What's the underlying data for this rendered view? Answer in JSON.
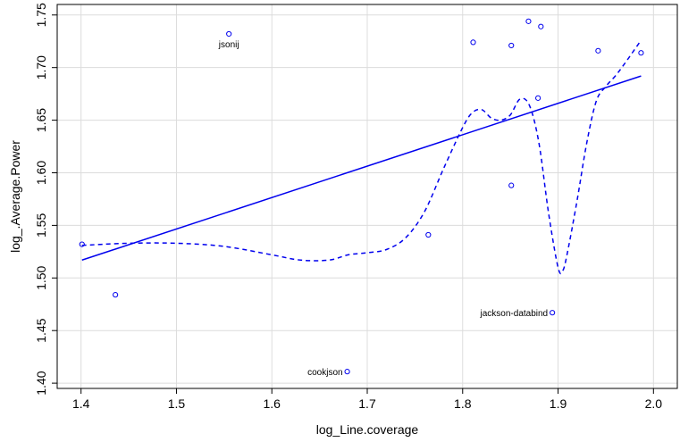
{
  "chart_data": {
    "type": "scatter",
    "title": "",
    "xlabel": "log_Line.coverage",
    "ylabel": "log_.Average.Power",
    "xlim": [
      1.375,
      2.025
    ],
    "ylim": [
      1.395,
      1.76
    ],
    "x_ticks": [
      "1.4",
      "1.5",
      "1.6",
      "1.7",
      "1.8",
      "1.9",
      "2.0"
    ],
    "x_tick_values": [
      1.4,
      1.5,
      1.6,
      1.7,
      1.8,
      1.9,
      2.0
    ],
    "y_ticks": [
      "1.40",
      "1.45",
      "1.50",
      "1.55",
      "1.60",
      "1.65",
      "1.70",
      "1.75"
    ],
    "y_tick_values": [
      1.4,
      1.45,
      1.5,
      1.55,
      1.6,
      1.65,
      1.7,
      1.75
    ],
    "grid": true,
    "color": "#0000ee",
    "points": [
      {
        "x": 1.401,
        "y": 1.532,
        "label": ""
      },
      {
        "x": 1.436,
        "y": 1.484,
        "label": ""
      },
      {
        "x": 1.555,
        "y": 1.732,
        "label": "jsonij"
      },
      {
        "x": 1.679,
        "y": 1.411,
        "label": "cookjson"
      },
      {
        "x": 1.764,
        "y": 1.541,
        "label": ""
      },
      {
        "x": 1.811,
        "y": 1.724,
        "label": ""
      },
      {
        "x": 1.851,
        "y": 1.721,
        "label": ""
      },
      {
        "x": 1.851,
        "y": 1.588,
        "label": ""
      },
      {
        "x": 1.869,
        "y": 1.744,
        "label": ""
      },
      {
        "x": 1.879,
        "y": 1.671,
        "label": ""
      },
      {
        "x": 1.882,
        "y": 1.739,
        "label": ""
      },
      {
        "x": 1.894,
        "y": 1.467,
        "label": "jackson-databind"
      },
      {
        "x": 1.942,
        "y": 1.716,
        "label": ""
      },
      {
        "x": 1.987,
        "y": 1.714,
        "label": ""
      }
    ],
    "regression_line": {
      "x": [
        1.401,
        1.987
      ],
      "y": [
        1.517,
        1.692
      ]
    },
    "smooth_line": {
      "x": [
        1.401,
        1.45,
        1.5,
        1.55,
        1.6,
        1.63,
        1.66,
        1.68,
        1.7,
        1.72,
        1.74,
        1.76,
        1.78,
        1.8,
        1.81,
        1.82,
        1.83,
        1.84,
        1.85,
        1.86,
        1.87,
        1.88,
        1.89,
        1.9,
        1.905,
        1.91,
        1.92,
        1.93,
        1.94,
        1.95,
        1.96,
        1.97,
        1.987
      ],
      "y": [
        1.531,
        1.533,
        1.533,
        1.53,
        1.522,
        1.517,
        1.517,
        1.522,
        1.524,
        1.527,
        1.538,
        1.563,
        1.604,
        1.643,
        1.657,
        1.66,
        1.652,
        1.65,
        1.655,
        1.67,
        1.664,
        1.628,
        1.562,
        1.51,
        1.507,
        1.525,
        1.574,
        1.628,
        1.668,
        1.682,
        1.692,
        1.704,
        1.726
      ]
    }
  }
}
